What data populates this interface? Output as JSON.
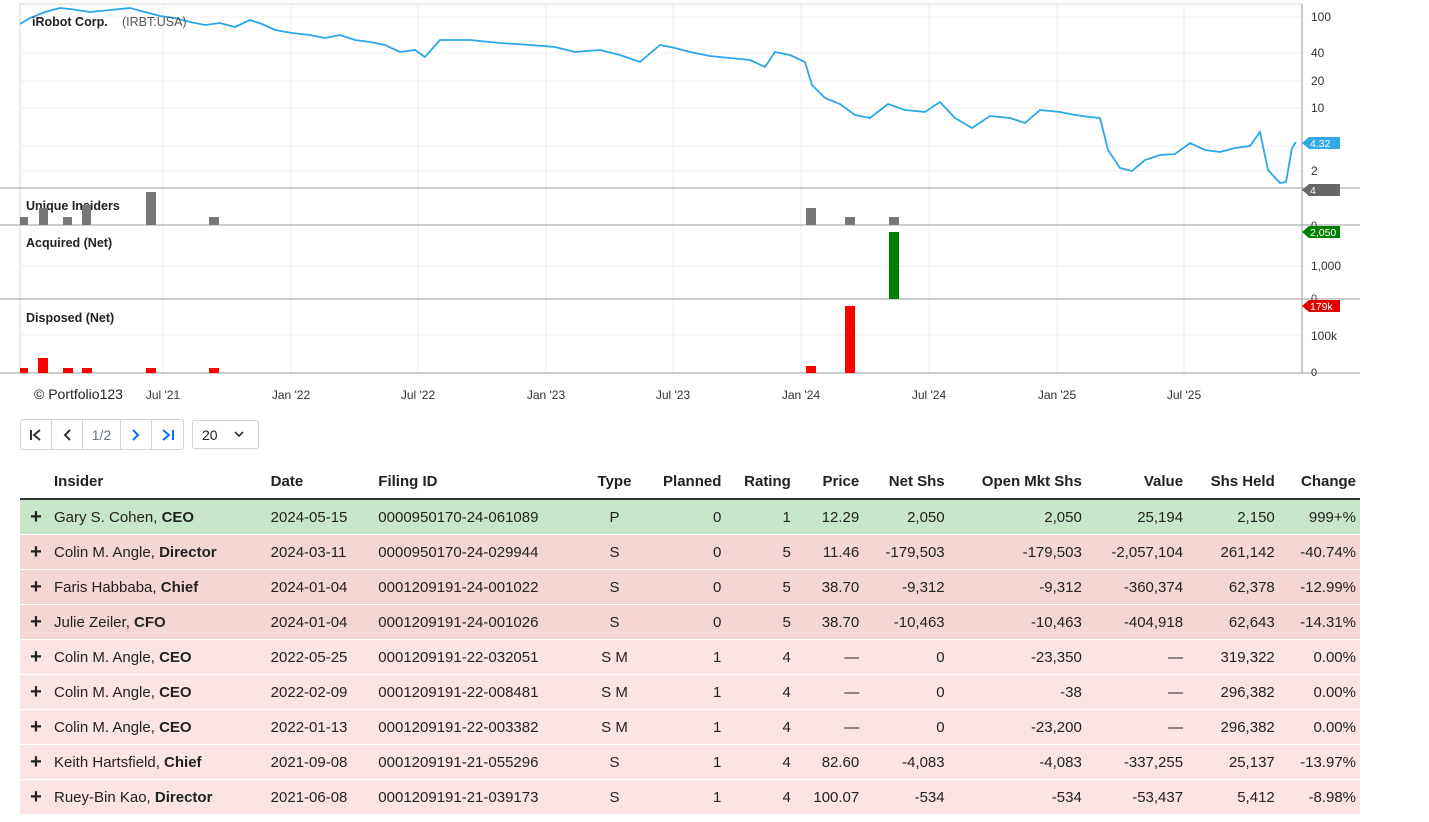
{
  "chart": {
    "title": "iRobot Corp.",
    "ticker": "(IRBT:USA)",
    "copyright": "© Portfolio123",
    "price_axis_ticks": [
      "100",
      "40",
      "20",
      "10",
      "2"
    ],
    "price_badge": "4.32",
    "panels": {
      "unique_insiders": {
        "label": "Unique Insiders",
        "ticks": [
          "4",
          "0"
        ]
      },
      "acquired": {
        "label": "Acquired (Net)",
        "ticks": [
          "2,050",
          "1,000",
          "0"
        ]
      },
      "disposed": {
        "label": "Disposed (Net)",
        "ticks": [
          "179k",
          "100k",
          "0"
        ]
      }
    },
    "x_labels": [
      "Jul '21",
      "Jan '22",
      "Jul '22",
      "Jan '23",
      "Jul '23",
      "Jan '24",
      "Jul '24",
      "Jan '25",
      "Jul '25"
    ],
    "colors": {
      "line": "#2aa7e8",
      "acquired": "#008000",
      "disposed": "#ff0000",
      "insiders": "#777777",
      "badge_price": "#33a9e6",
      "badge_insiders": "#666666",
      "badge_acquired": "#008000",
      "badge_disposed": "#e00000"
    }
  },
  "pager": {
    "page": "1/2",
    "page_size": "20",
    "first_icon": "first-page-icon",
    "prev_icon": "prev-page-icon",
    "next_icon": "next-page-icon",
    "last_icon": "last-page-icon"
  },
  "table": {
    "headers": {
      "insider": "Insider",
      "date": "Date",
      "filing": "Filing ID",
      "type": "Type",
      "planned": "Planned",
      "rating": "Rating",
      "price": "Price",
      "net_shs": "Net Shs",
      "open_mkt": "Open Mkt Shs",
      "value": "Value",
      "held": "Shs Held",
      "change": "Change"
    },
    "rows": [
      {
        "expand": "+",
        "name": "Gary S. Cohen, ",
        "role": "CEO",
        "date": "2024-05-15",
        "filing": "0000950170-24-061089",
        "type": "P",
        "planned": "0",
        "rating": "1",
        "price": "12.29",
        "net": "2,050",
        "open": "2,050",
        "value": "25,194",
        "held": "2,150",
        "change": "999+%",
        "tone": "g"
      },
      {
        "expand": "+",
        "name": "Colin M. Angle, ",
        "role": "Director",
        "date": "2024-03-11",
        "filing": "0000950170-24-029944",
        "type": "S",
        "planned": "0",
        "rating": "5",
        "price": "11.46",
        "net": "-179,503",
        "open": "-179,503",
        "value": "-2,057,104",
        "held": "261,142",
        "change": "-40.74%",
        "tone": "m"
      },
      {
        "expand": "+",
        "name": "Faris Habbaba, ",
        "role": "Chief",
        "date": "2024-01-04",
        "filing": "0001209191-24-001022",
        "type": "S",
        "planned": "0",
        "rating": "5",
        "price": "38.70",
        "net": "-9,312",
        "open": "-9,312",
        "value": "-360,374",
        "held": "62,378",
        "change": "-12.99%",
        "tone": "m"
      },
      {
        "expand": "+",
        "name": "Julie Zeiler, ",
        "role": "CFO",
        "date": "2024-01-04",
        "filing": "0001209191-24-001026",
        "type": "S",
        "planned": "0",
        "rating": "5",
        "price": "38.70",
        "net": "-10,463",
        "open": "-10,463",
        "value": "-404,918",
        "held": "62,643",
        "change": "-14.31%",
        "tone": "m"
      },
      {
        "expand": "+",
        "name": "Colin M. Angle, ",
        "role": "CEO",
        "date": "2022-05-25",
        "filing": "0001209191-22-032051",
        "type": "S M",
        "planned": "1",
        "rating": "4",
        "price": "—",
        "net": "0",
        "open": "-23,350",
        "value": "—",
        "held": "319,322",
        "change": "0.00%",
        "tone": "p"
      },
      {
        "expand": "+",
        "name": "Colin M. Angle, ",
        "role": "CEO",
        "date": "2022-02-09",
        "filing": "0001209191-22-008481",
        "type": "S M",
        "planned": "1",
        "rating": "4",
        "price": "—",
        "net": "0",
        "open": "-38",
        "value": "—",
        "held": "296,382",
        "change": "0.00%",
        "tone": "p"
      },
      {
        "expand": "+",
        "name": "Colin M. Angle, ",
        "role": "CEO",
        "date": "2022-01-13",
        "filing": "0001209191-22-003382",
        "type": "S M",
        "planned": "1",
        "rating": "4",
        "price": "—",
        "net": "0",
        "open": "-23,200",
        "value": "—",
        "held": "296,382",
        "change": "0.00%",
        "tone": "p"
      },
      {
        "expand": "+",
        "name": "Keith Hartsfield, ",
        "role": "Chief",
        "date": "2021-09-08",
        "filing": "0001209191-21-055296",
        "type": "S",
        "planned": "1",
        "rating": "4",
        "price": "82.60",
        "net": "-4,083",
        "open": "-4,083",
        "value": "-337,255",
        "held": "25,137",
        "change": "-13.97%",
        "tone": "p"
      },
      {
        "expand": "+",
        "name": "Ruey-Bin Kao, ",
        "role": "Director",
        "date": "2021-06-08",
        "filing": "0001209191-21-039173",
        "type": "S",
        "planned": "1",
        "rating": "4",
        "price": "100.07",
        "net": "-534",
        "open": "-534",
        "value": "-53,437",
        "held": "5,412",
        "change": "-8.98%",
        "tone": "p"
      }
    ]
  }
}
